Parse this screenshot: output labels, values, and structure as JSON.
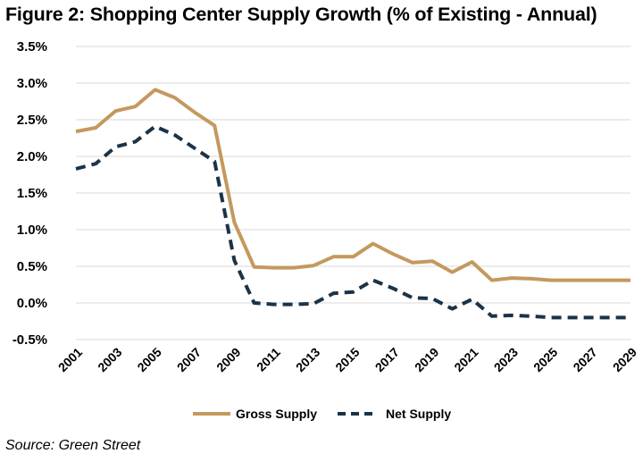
{
  "title": "Figure 2: Shopping Center Supply Growth (% of Existing - Annual)",
  "source": "Source: Green Street",
  "chart_data": {
    "type": "line",
    "ylim": [
      -0.5,
      3.5
    ],
    "y_ticks": [
      -0.5,
      0.0,
      0.5,
      1.0,
      1.5,
      2.0,
      2.5,
      3.0,
      3.5
    ],
    "y_tick_labels": [
      "-0.5%",
      "0.0%",
      "0.5%",
      "1.0%",
      "1.5%",
      "2.0%",
      "2.5%",
      "3.0%",
      "3.5%"
    ],
    "x_tick_labels": [
      "2001",
      "2003",
      "2005",
      "2007",
      "2009",
      "2011",
      "2013",
      "2015",
      "2017",
      "2019",
      "2021",
      "2023",
      "2025",
      "2027",
      "2029"
    ],
    "x": [
      2001,
      2002,
      2003,
      2004,
      2005,
      2006,
      2007,
      2008,
      2009,
      2010,
      2011,
      2012,
      2013,
      2014,
      2015,
      2016,
      2017,
      2018,
      2019,
      2020,
      2021,
      2022,
      2023,
      2024,
      2025,
      2026,
      2027,
      2028,
      2029
    ],
    "grid": true,
    "legend_position": "bottom",
    "series": [
      {
        "name": "Gross Supply",
        "color": "#C4995E",
        "style": "solid",
        "values": [
          2.34,
          2.39,
          2.62,
          2.68,
          2.91,
          2.8,
          2.6,
          2.42,
          1.1,
          0.49,
          0.48,
          0.48,
          0.51,
          0.63,
          0.63,
          0.81,
          0.67,
          0.55,
          0.57,
          0.42,
          0.56,
          0.31,
          0.34,
          0.33,
          0.31,
          0.31,
          0.31,
          0.31,
          0.31
        ]
      },
      {
        "name": "Net Supply",
        "color": "#1B3347",
        "style": "dashed",
        "values": [
          1.83,
          1.9,
          2.13,
          2.2,
          2.41,
          2.29,
          2.11,
          1.93,
          0.58,
          0.0,
          -0.02,
          -0.02,
          -0.01,
          0.13,
          0.15,
          0.31,
          0.2,
          0.07,
          0.06,
          -0.08,
          0.05,
          -0.18,
          -0.17,
          -0.18,
          -0.2,
          -0.2,
          -0.2,
          -0.2,
          -0.2
        ]
      }
    ]
  }
}
